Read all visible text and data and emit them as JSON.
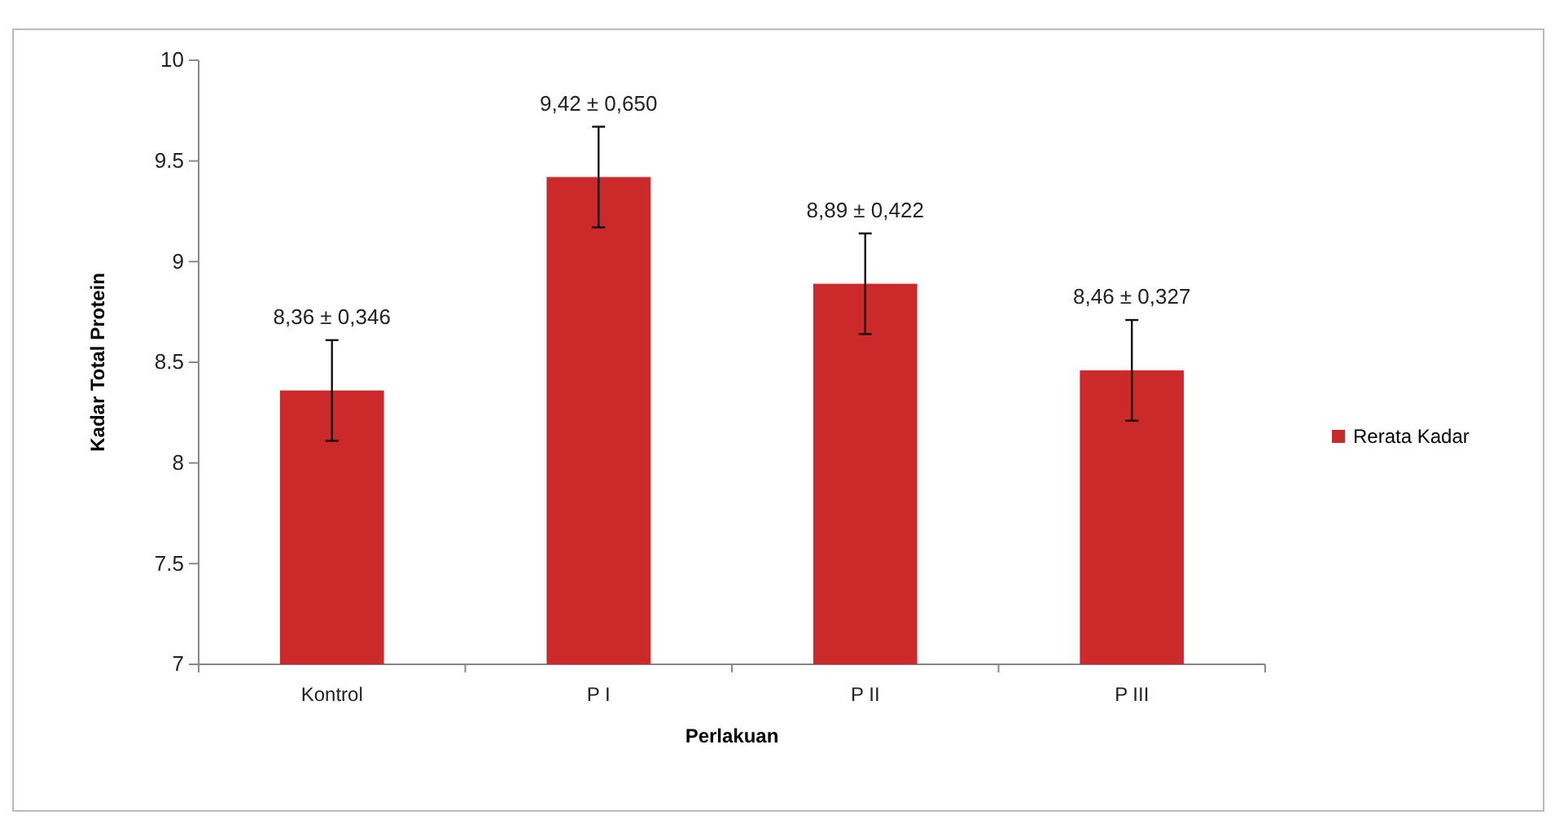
{
  "chart_data": {
    "type": "bar",
    "categories": [
      "Kontrol",
      "P I",
      "P II",
      "P III"
    ],
    "series": [
      {
        "name": "Rerata Kadar",
        "color": "#cc2a2a",
        "values": [
          8.36,
          9.42,
          8.89,
          8.46
        ],
        "errors": [
          0.25,
          0.25,
          0.25,
          0.25
        ],
        "value_labels": [
          "8,36 ± 0,346",
          "9,42 ± 0,650",
          "8,89 ± 0,422",
          "8,46 ± 0,327"
        ]
      }
    ],
    "xlabel": "Perlakuan",
    "ylabel": "Kadar Total Protein",
    "ylim": [
      7,
      10
    ],
    "yticks": [
      7,
      {
        "value": 7.5,
        "label": "7.5"
      },
      8,
      {
        "value": 8.5,
        "label": "8.5"
      },
      9,
      {
        "value": 9.5,
        "label": "9.5"
      },
      10
    ],
    "grid": false,
    "legend": "right"
  }
}
